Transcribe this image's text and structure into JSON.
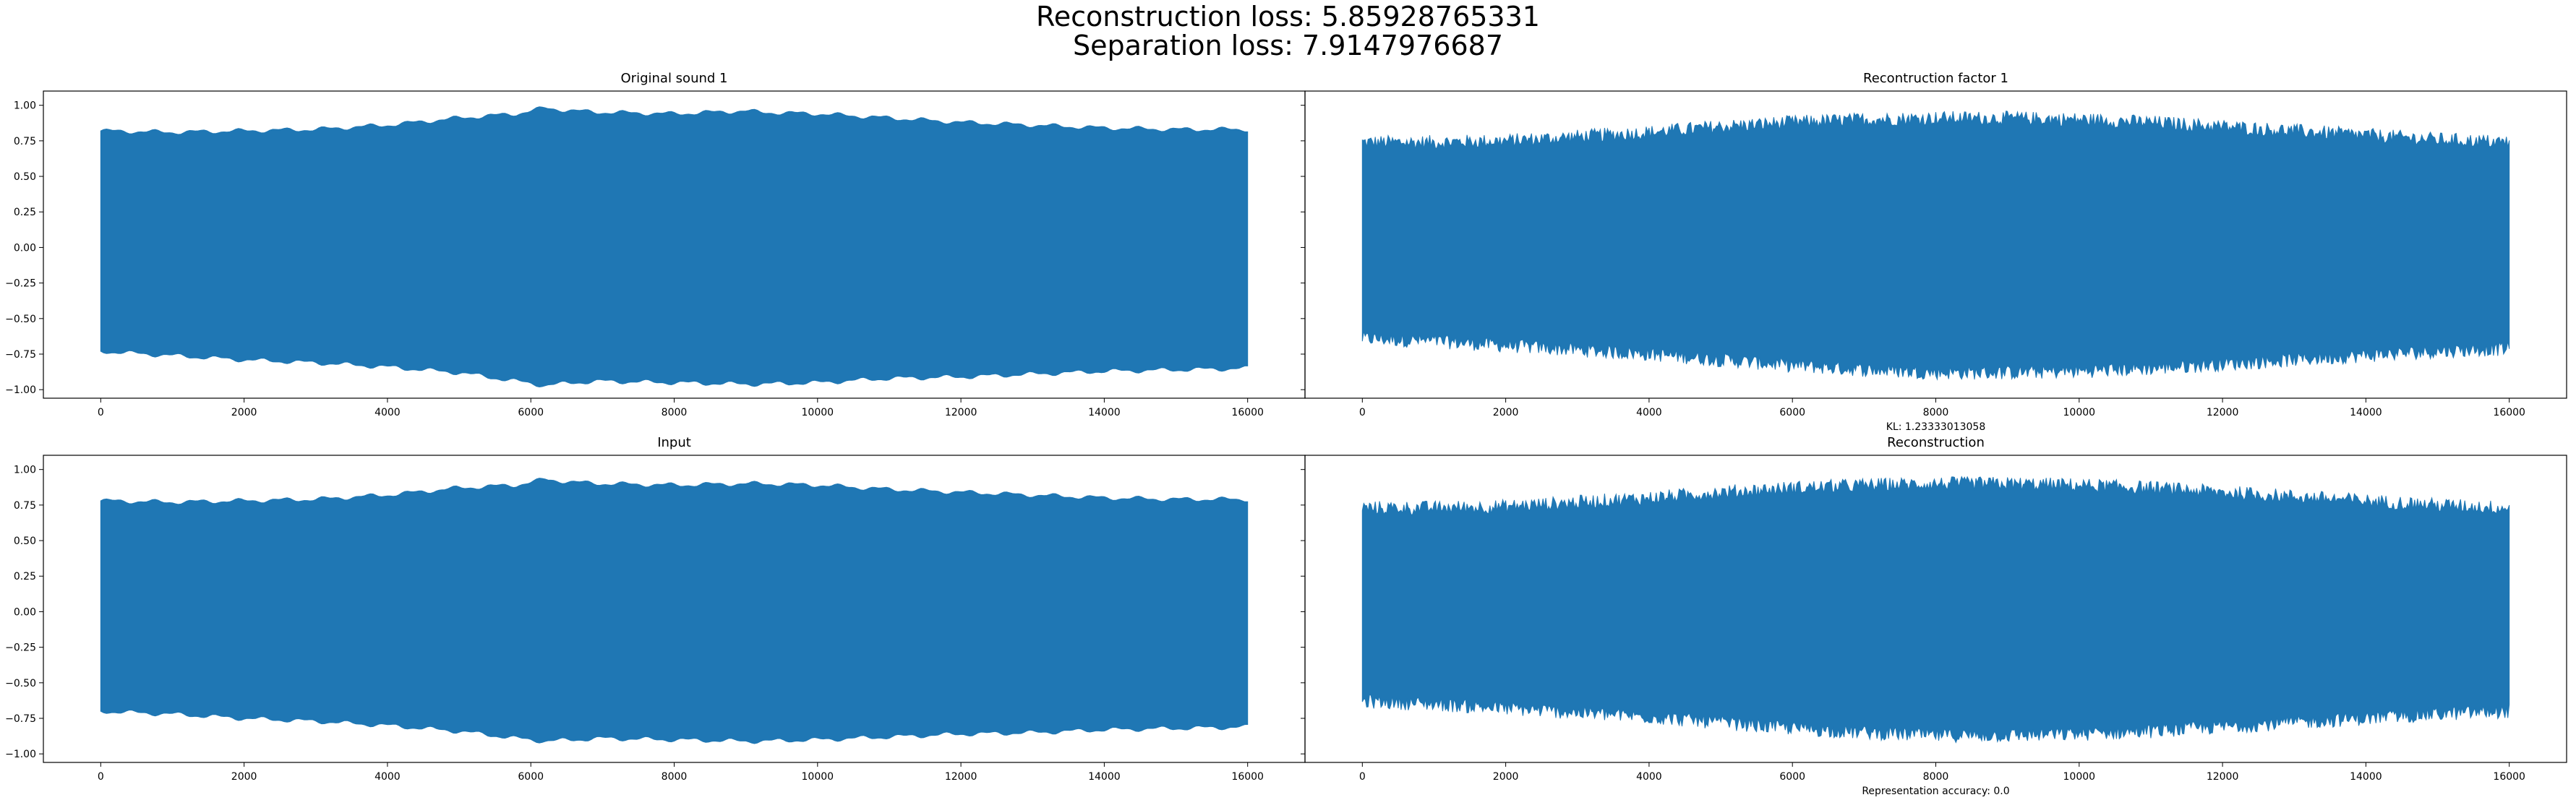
{
  "figure": {
    "suptitle_lines": [
      "Reconstruction loss: 5.85928765331",
      "Separation loss: 7.9147976687"
    ],
    "series_color": "#1f77b4"
  },
  "chart_data": [
    {
      "type": "line",
      "title": "Original sound 1",
      "xlabel": "",
      "ylabel": "",
      "xlim": [
        -800,
        16800
      ],
      "ylim": [
        -1.06,
        1.1
      ],
      "xticks": [
        0,
        2000,
        4000,
        6000,
        8000,
        10000,
        12000,
        14000,
        16000
      ],
      "xtick_labels": [
        "0",
        "2000",
        "4000",
        "6000",
        "8000",
        "10000",
        "12000",
        "14000",
        "16000"
      ],
      "yticks": [
        1.0,
        0.75,
        0.5,
        0.25,
        0.0,
        -0.25,
        -0.5,
        -0.75,
        -1.0
      ],
      "ytick_labels": [
        "1.00",
        "0.75",
        "0.50",
        "0.25",
        "0.00",
        "−0.25",
        "−0.50",
        "−0.75",
        "−1.00"
      ],
      "note": "",
      "envelope": {
        "style": "smooth",
        "x": [
          0,
          1000,
          2000,
          3000,
          4000,
          5000,
          5800,
          6200,
          6600,
          7000,
          8000,
          9000,
          9200,
          10000,
          11000,
          12000,
          13000,
          14000,
          15000,
          16000
        ],
        "upper": [
          0.82,
          0.81,
          0.82,
          0.83,
          0.86,
          0.91,
          0.94,
          0.98,
          0.96,
          0.95,
          0.94,
          0.96,
          0.95,
          0.94,
          0.91,
          0.88,
          0.86,
          0.84,
          0.83,
          0.83
        ],
        "lower": [
          -0.73,
          -0.76,
          -0.79,
          -0.81,
          -0.84,
          -0.88,
          -0.94,
          -0.97,
          -0.95,
          -0.94,
          -0.95,
          -0.96,
          -0.96,
          -0.95,
          -0.92,
          -0.91,
          -0.89,
          -0.87,
          -0.86,
          -0.85
        ]
      }
    },
    {
      "type": "line",
      "title": "Recontruction factor 1",
      "xlabel": "",
      "ylabel": "",
      "xlim": [
        -800,
        16800
      ],
      "ylim": [
        -1.06,
        1.1
      ],
      "xticks": [
        0,
        2000,
        4000,
        6000,
        8000,
        10000,
        12000,
        14000,
        16000
      ],
      "xtick_labels": [
        "0",
        "2000",
        "4000",
        "6000",
        "8000",
        "10000",
        "12000",
        "14000",
        "16000"
      ],
      "yticks": [],
      "ytick_labels": [],
      "note": "KL: 1.23333013058",
      "envelope": {
        "style": "noisy",
        "x": [
          0,
          1000,
          2000,
          3000,
          4000,
          5000,
          6000,
          7000,
          8000,
          9000,
          10000,
          11000,
          12000,
          13000,
          14000,
          15000,
          16000
        ],
        "upper": [
          0.74,
          0.74,
          0.75,
          0.78,
          0.81,
          0.85,
          0.88,
          0.9,
          0.91,
          0.91,
          0.9,
          0.88,
          0.85,
          0.82,
          0.79,
          0.76,
          0.74
        ],
        "lower": [
          -0.64,
          -0.66,
          -0.69,
          -0.72,
          -0.75,
          -0.79,
          -0.83,
          -0.86,
          -0.88,
          -0.88,
          -0.87,
          -0.85,
          -0.82,
          -0.79,
          -0.76,
          -0.73,
          -0.71
        ]
      }
    },
    {
      "type": "line",
      "title": "Input",
      "xlabel": "",
      "ylabel": "",
      "xlim": [
        -800,
        16800
      ],
      "ylim": [
        -1.06,
        1.1
      ],
      "xticks": [
        0,
        2000,
        4000,
        6000,
        8000,
        10000,
        12000,
        14000,
        16000
      ],
      "xtick_labels": [
        "0",
        "2000",
        "4000",
        "6000",
        "8000",
        "10000",
        "12000",
        "14000",
        "16000"
      ],
      "yticks": [
        1.0,
        0.75,
        0.5,
        0.25,
        0.0,
        -0.25,
        -0.5,
        -0.75,
        -1.0
      ],
      "ytick_labels": [
        "1.00",
        "0.75",
        "0.50",
        "0.25",
        "0.00",
        "−0.25",
        "−0.50",
        "−0.75",
        "−1.00"
      ],
      "note": "",
      "envelope": {
        "style": "smooth",
        "x": [
          0,
          1000,
          2000,
          3000,
          4000,
          5000,
          5800,
          6200,
          6600,
          7000,
          8000,
          9000,
          9200,
          10000,
          11000,
          12000,
          13000,
          14000,
          15000,
          16000
        ],
        "upper": [
          0.78,
          0.77,
          0.78,
          0.79,
          0.82,
          0.87,
          0.89,
          0.93,
          0.91,
          0.9,
          0.89,
          0.9,
          0.9,
          0.89,
          0.86,
          0.84,
          0.82,
          0.8,
          0.79,
          0.79
        ],
        "lower": [
          -0.7,
          -0.72,
          -0.75,
          -0.77,
          -0.8,
          -0.84,
          -0.89,
          -0.91,
          -0.9,
          -0.89,
          -0.9,
          -0.91,
          -0.91,
          -0.9,
          -0.88,
          -0.86,
          -0.85,
          -0.83,
          -0.82,
          -0.81
        ]
      }
    },
    {
      "type": "line",
      "title": "Reconstruction",
      "xlabel": "",
      "ylabel": "",
      "xlim": [
        -800,
        16800
      ],
      "ylim": [
        -1.06,
        1.1
      ],
      "xticks": [
        0,
        2000,
        4000,
        6000,
        8000,
        10000,
        12000,
        14000,
        16000
      ],
      "xtick_labels": [
        "0",
        "2000",
        "4000",
        "6000",
        "8000",
        "10000",
        "12000",
        "14000",
        "16000"
      ],
      "yticks": [],
      "ytick_labels": [],
      "note": "Representation accuracy: 0.0",
      "envelope": {
        "style": "noisy",
        "x": [
          0,
          1000,
          2000,
          3000,
          4000,
          5000,
          6000,
          7000,
          8000,
          9000,
          10000,
          11000,
          12000,
          13000,
          14000,
          15000,
          16000
        ],
        "upper": [
          0.73,
          0.73,
          0.74,
          0.77,
          0.8,
          0.84,
          0.87,
          0.89,
          0.9,
          0.9,
          0.89,
          0.87,
          0.84,
          0.81,
          0.78,
          0.75,
          0.73
        ],
        "lower": [
          -0.63,
          -0.65,
          -0.68,
          -0.71,
          -0.74,
          -0.78,
          -0.82,
          -0.85,
          -0.87,
          -0.87,
          -0.86,
          -0.84,
          -0.81,
          -0.78,
          -0.75,
          -0.72,
          -0.7
        ]
      }
    }
  ]
}
